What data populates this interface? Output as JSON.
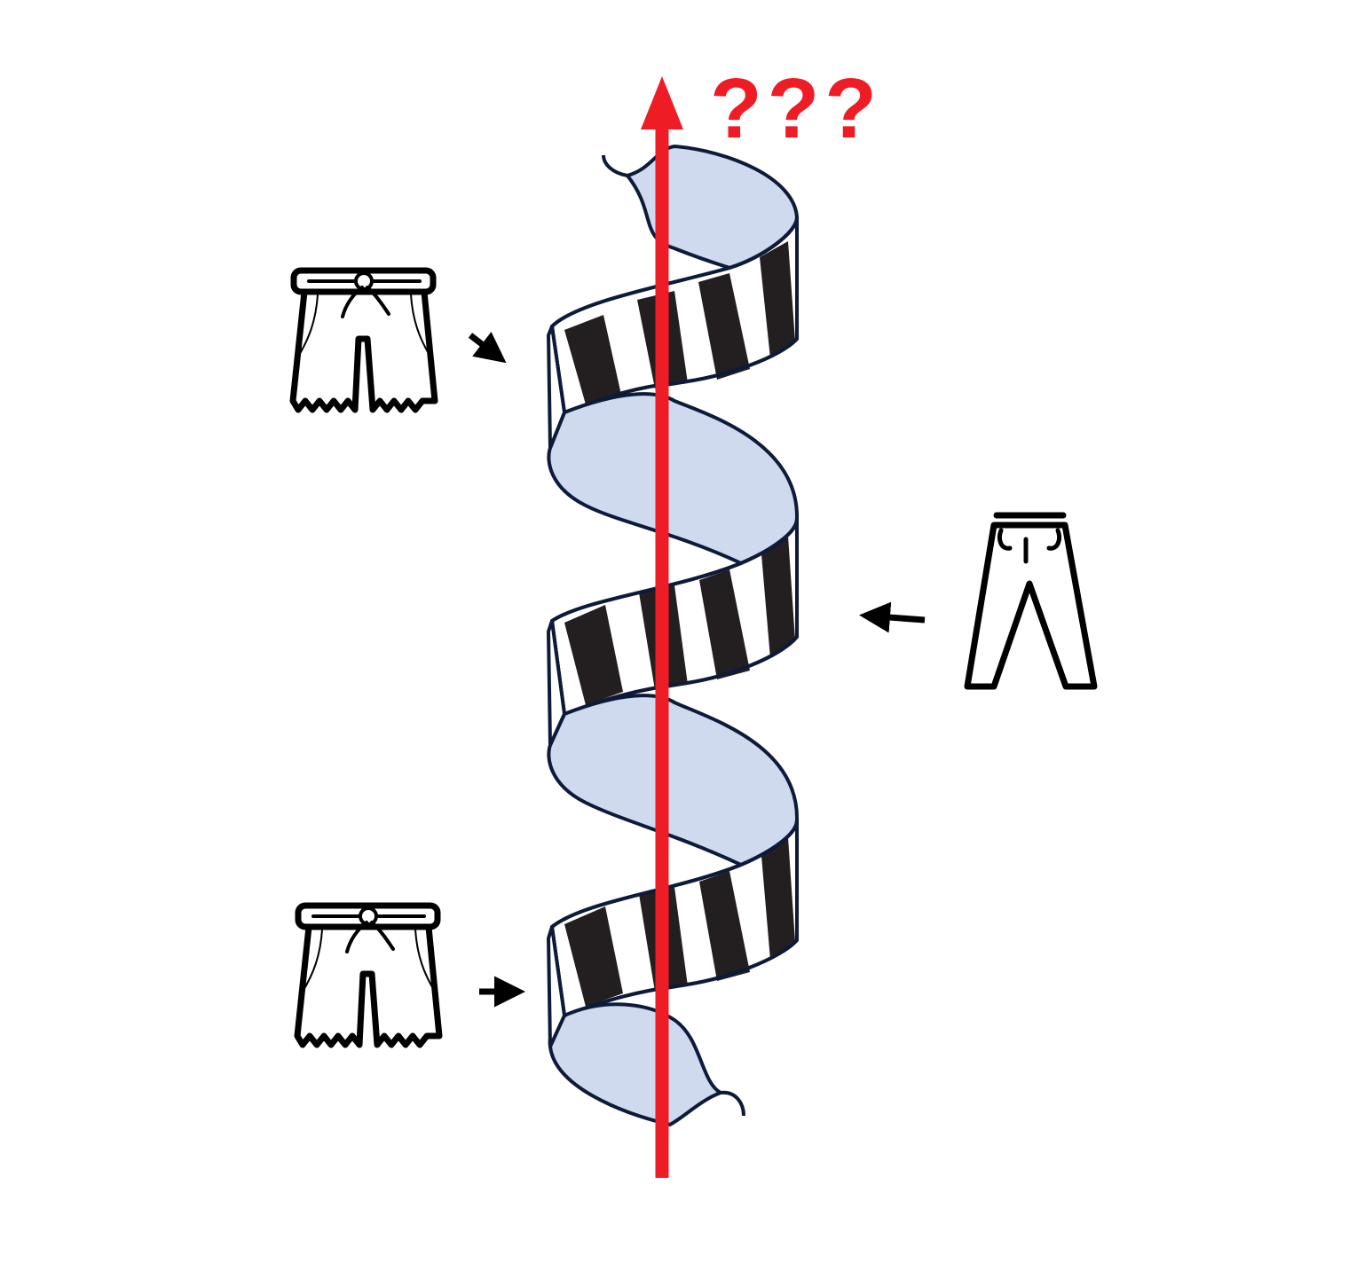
{
  "axis": {
    "label": "???",
    "color": "#ee1c25"
  },
  "helix": {
    "inner_fill": "#cfdaee",
    "outline": "#0d1a3a",
    "stripe_dark": "#231f20",
    "stripe_light": "#ffffff"
  },
  "icons": [
    {
      "name": "shorts-icon",
      "position": "left-top"
    },
    {
      "name": "trousers-icon",
      "position": "right-middle"
    },
    {
      "name": "shorts-icon",
      "position": "left-bottom"
    }
  ],
  "pointer_color": "#000000"
}
